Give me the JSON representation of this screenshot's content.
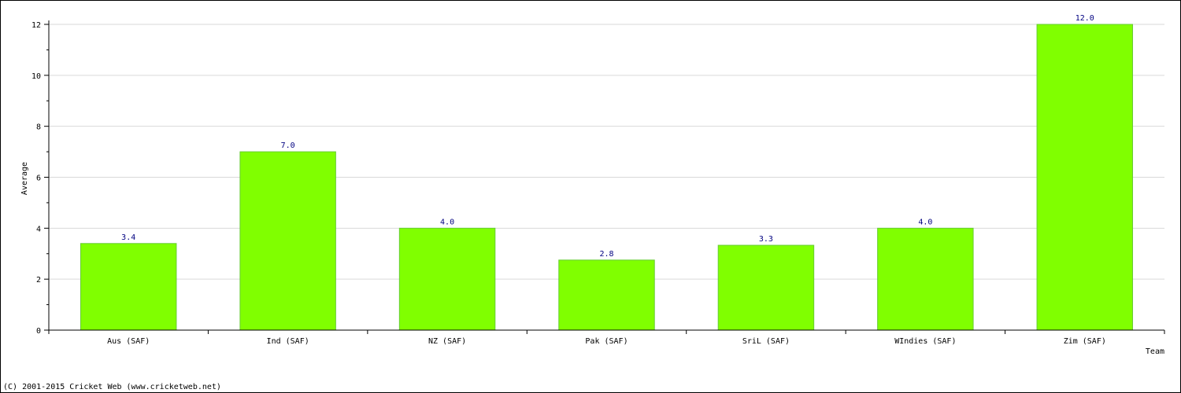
{
  "chart_data": {
    "type": "bar",
    "title": "",
    "xlabel": "Team",
    "ylabel": "Average",
    "categories": [
      "Aus (SAF)",
      "Ind (SAF)",
      "NZ (SAF)",
      "Pak (SAF)",
      "SriL (SAF)",
      "WIndies (SAF)",
      "Zim (SAF)"
    ],
    "values": [
      3.4,
      7.0,
      4.0,
      2.75,
      3.33,
      4.0,
      12.0
    ],
    "value_labels": [
      "3.4",
      "7.0",
      "4.0",
      "2.8",
      "3.3",
      "4.0",
      "12.0"
    ],
    "ylim": [
      0,
      12
    ],
    "yticks": [
      0,
      2,
      4,
      6,
      8,
      10,
      12
    ],
    "grid": true,
    "legend": "none"
  },
  "footer": {
    "copyright": "(C) 2001-2015 Cricket Web (www.cricketweb.net)"
  },
  "colors": {
    "bar_fill": "#80ff00",
    "bar_stroke": "#66cc33",
    "value_label": "#000080",
    "grid": "#d9d9d9",
    "axis": "#000000"
  }
}
